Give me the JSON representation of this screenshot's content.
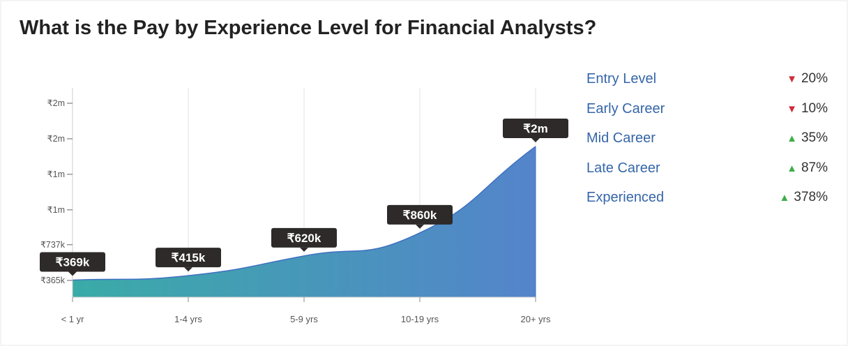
{
  "title": "What is the Pay by Experience Level for Financial Analysts?",
  "chart_data": {
    "type": "area",
    "categories": [
      "< 1 yr",
      "1-4 yrs",
      "5-9 yrs",
      "10-19 yrs",
      "20+ yrs"
    ],
    "values": [
      369000,
      415000,
      620000,
      860000,
      1760000
    ],
    "data_labels": [
      "₹369k",
      "₹415k",
      "₹620k",
      "₹860k",
      "₹2m"
    ],
    "y_ticks": [
      {
        "value": 365000,
        "label": "₹365k"
      },
      {
        "value": 737000,
        "label": "₹737k"
      },
      {
        "value": 1100000,
        "label": "₹1m"
      },
      {
        "value": 1470000,
        "label": "₹1m"
      },
      {
        "value": 1840000,
        "label": "₹2m"
      },
      {
        "value": 2210000,
        "label": "₹2m"
      }
    ],
    "ylim": [
      200000,
      2250000
    ],
    "grid": "vertical",
    "colors": {
      "start": "#3aaba7",
      "end": "#5484cb",
      "line": "#3f6fc0"
    }
  },
  "legend": {
    "items": [
      {
        "label": "Entry Level",
        "direction": "down",
        "arrow": "▼",
        "change": "20%"
      },
      {
        "label": "Early Career",
        "direction": "down",
        "arrow": "▼",
        "change": "10%"
      },
      {
        "label": "Mid Career",
        "direction": "up",
        "arrow": "▲",
        "change": "35%"
      },
      {
        "label": "Late Career",
        "direction": "up",
        "arrow": "▲",
        "change": "87%"
      },
      {
        "label": "Experienced",
        "direction": "up",
        "arrow": "▲",
        "change": "378%"
      }
    ]
  }
}
